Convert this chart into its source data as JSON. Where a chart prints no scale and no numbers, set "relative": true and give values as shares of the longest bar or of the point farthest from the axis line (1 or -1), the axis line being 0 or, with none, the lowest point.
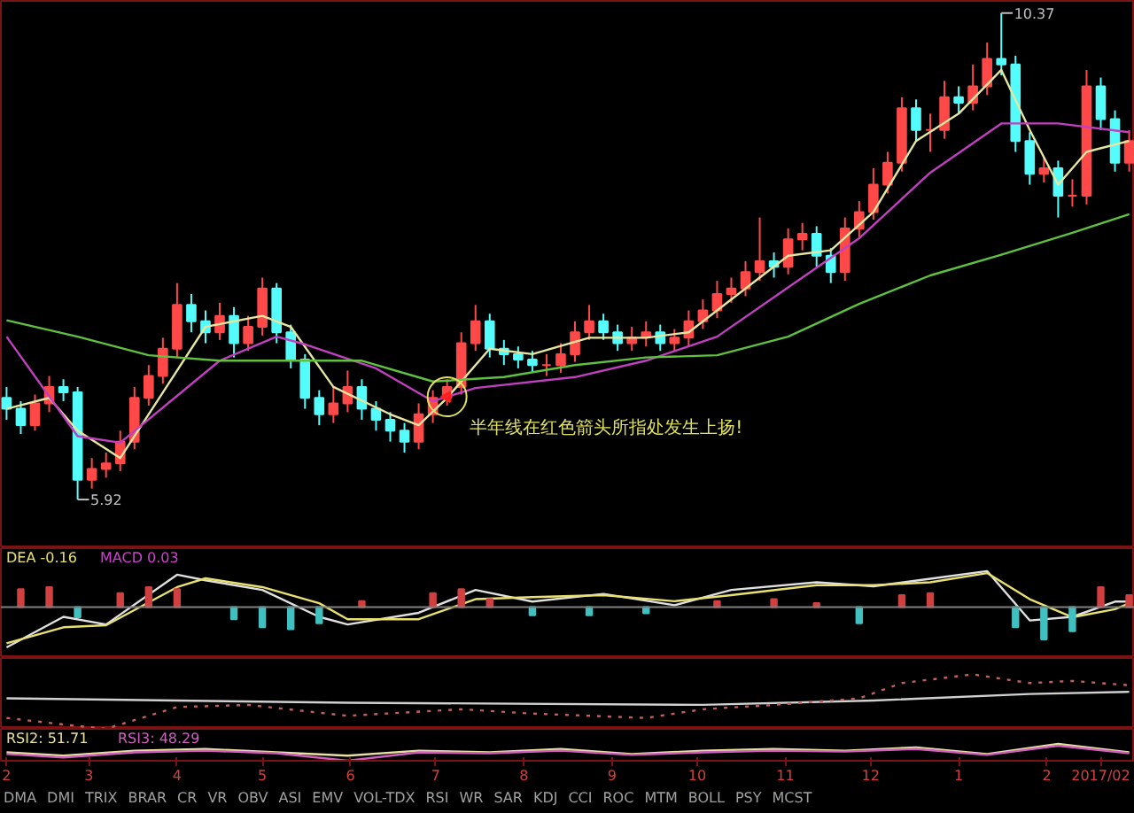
{
  "chart_data": [
    {
      "type": "candlestick",
      "xlim": [
        "2016-01-30",
        "2017-03-04"
      ],
      "tick_labels": false,
      "x": [
        "2016-02-01",
        "2016-02-06",
        "2016-02-11",
        "2016-02-16",
        "2016-02-21",
        "2016-02-26",
        "2016-03-02",
        "2016-03-07",
        "2016-03-12",
        "2016-03-17",
        "2016-03-22",
        "2016-03-27",
        "2016-04-01",
        "2016-04-06",
        "2016-04-11",
        "2016-04-16",
        "2016-04-21",
        "2016-04-26",
        "2016-05-01",
        "2016-05-06",
        "2016-05-11",
        "2016-05-16",
        "2016-05-21",
        "2016-05-26",
        "2016-05-31",
        "2016-06-05",
        "2016-06-10",
        "2016-06-15",
        "2016-06-20",
        "2016-06-25",
        "2016-06-30",
        "2016-07-05",
        "2016-07-10",
        "2016-07-15",
        "2016-07-20",
        "2016-07-25",
        "2016-07-30",
        "2016-08-04",
        "2016-08-09",
        "2016-08-14",
        "2016-08-19",
        "2016-08-24",
        "2016-08-29",
        "2016-09-03",
        "2016-09-08",
        "2016-09-13",
        "2016-09-18",
        "2016-09-23",
        "2016-09-28",
        "2016-10-03",
        "2016-10-08",
        "2016-10-13",
        "2016-10-18",
        "2016-10-23",
        "2016-10-28",
        "2016-11-02",
        "2016-11-07",
        "2016-11-12",
        "2016-11-17",
        "2016-11-22",
        "2016-11-27",
        "2016-12-02",
        "2016-12-07",
        "2016-12-12",
        "2016-12-17",
        "2016-12-22",
        "2016-12-27",
        "2017-01-01",
        "2017-01-06",
        "2017-01-11",
        "2017-01-16",
        "2017-01-21",
        "2017-01-26",
        "2017-01-31",
        "2017-02-05",
        "2017-02-10",
        "2017-02-15",
        "2017-02-20",
        "2017-02-25",
        "2017-03-02"
      ],
      "ohlc": [
        [
          6.85,
          6.95,
          6.65,
          6.75
        ],
        [
          6.75,
          6.82,
          6.52,
          6.6
        ],
        [
          6.6,
          6.88,
          6.55,
          6.8
        ],
        [
          6.8,
          7.05,
          6.72,
          6.95
        ],
        [
          6.95,
          7.02,
          6.82,
          6.9
        ],
        [
          6.9,
          6.95,
          5.92,
          6.1
        ],
        [
          6.1,
          6.3,
          6.02,
          6.2
        ],
        [
          6.2,
          6.35,
          6.12,
          6.25
        ],
        [
          6.25,
          6.55,
          6.18,
          6.45
        ],
        [
          6.45,
          6.95,
          6.38,
          6.85
        ],
        [
          6.85,
          7.15,
          6.78,
          7.05
        ],
        [
          7.05,
          7.4,
          6.98,
          7.3
        ],
        [
          7.3,
          7.9,
          7.22,
          7.7
        ],
        [
          7.7,
          7.8,
          7.45,
          7.55
        ],
        [
          7.55,
          7.65,
          7.35,
          7.45
        ],
        [
          7.45,
          7.72,
          7.38,
          7.6
        ],
        [
          7.6,
          7.68,
          7.22,
          7.35
        ],
        [
          7.35,
          7.6,
          7.28,
          7.5
        ],
        [
          7.5,
          7.95,
          7.42,
          7.85
        ],
        [
          7.85,
          7.9,
          7.35,
          7.45
        ],
        [
          7.45,
          7.52,
          7.12,
          7.2
        ],
        [
          7.2,
          7.25,
          6.75,
          6.85
        ],
        [
          6.85,
          6.92,
          6.6,
          6.7
        ],
        [
          6.7,
          6.95,
          6.62,
          6.8
        ],
        [
          6.8,
          7.1,
          6.72,
          6.95
        ],
        [
          6.95,
          7.02,
          6.65,
          6.75
        ],
        [
          6.75,
          6.82,
          6.55,
          6.65
        ],
        [
          6.65,
          6.72,
          6.45,
          6.55
        ],
        [
          6.55,
          6.62,
          6.35,
          6.45
        ],
        [
          6.45,
          6.8,
          6.38,
          6.7
        ],
        [
          6.7,
          6.92,
          6.62,
          6.85
        ],
        [
          6.85,
          7.02,
          6.78,
          6.95
        ],
        [
          6.95,
          7.45,
          6.88,
          7.35
        ],
        [
          7.35,
          7.7,
          7.28,
          7.55
        ],
        [
          7.55,
          7.62,
          7.22,
          7.3
        ],
        [
          7.3,
          7.38,
          7.15,
          7.25
        ],
        [
          7.25,
          7.32,
          7.12,
          7.2
        ],
        [
          7.2,
          7.28,
          7.08,
          7.15
        ],
        [
          7.15,
          7.25,
          7.05,
          7.15
        ],
        [
          7.15,
          7.35,
          7.08,
          7.25
        ],
        [
          7.25,
          7.55,
          7.18,
          7.45
        ],
        [
          7.45,
          7.7,
          7.38,
          7.55
        ],
        [
          7.55,
          7.62,
          7.38,
          7.45
        ],
        [
          7.45,
          7.52,
          7.28,
          7.35
        ],
        [
          7.35,
          7.5,
          7.28,
          7.4
        ],
        [
          7.4,
          7.55,
          7.32,
          7.45
        ],
        [
          7.45,
          7.52,
          7.28,
          7.35
        ],
        [
          7.35,
          7.48,
          7.28,
          7.4
        ],
        [
          7.4,
          7.65,
          7.32,
          7.55
        ],
        [
          7.55,
          7.75,
          7.48,
          7.65
        ],
        [
          7.65,
          7.92,
          7.58,
          7.8
        ],
        [
          7.8,
          7.95,
          7.72,
          7.85
        ],
        [
          7.85,
          8.1,
          7.78,
          8.0
        ],
        [
          8.0,
          8.5,
          7.92,
          8.1
        ],
        [
          8.1,
          8.18,
          7.95,
          8.05
        ],
        [
          8.05,
          8.4,
          7.98,
          8.3
        ],
        [
          8.3,
          8.45,
          8.2,
          8.35
        ],
        [
          8.35,
          8.42,
          8.05,
          8.15
        ],
        [
          8.15,
          8.22,
          7.9,
          8.0
        ],
        [
          8.0,
          8.5,
          7.92,
          8.4
        ],
        [
          8.4,
          8.65,
          8.32,
          8.55
        ],
        [
          8.55,
          8.95,
          8.48,
          8.8
        ],
        [
          8.8,
          9.1,
          8.72,
          9.0
        ],
        [
          9.0,
          9.6,
          8.92,
          9.5
        ],
        [
          9.5,
          9.58,
          9.2,
          9.3
        ],
        [
          9.3,
          9.45,
          9.1,
          9.3
        ],
        [
          9.3,
          9.75,
          9.22,
          9.6
        ],
        [
          9.6,
          9.7,
          9.45,
          9.55
        ],
        [
          9.55,
          9.9,
          9.48,
          9.7
        ],
        [
          9.7,
          10.1,
          9.62,
          9.95
        ],
        [
          9.95,
          10.37,
          9.8,
          9.9
        ],
        [
          9.9,
          9.98,
          9.1,
          9.2
        ],
        [
          9.2,
          9.28,
          8.8,
          8.9
        ],
        [
          8.9,
          9.05,
          8.82,
          8.95
        ],
        [
          8.95,
          9.02,
          8.5,
          8.7
        ],
        [
          8.7,
          8.85,
          8.6,
          8.7
        ],
        [
          8.7,
          9.85,
          8.62,
          9.7
        ],
        [
          9.7,
          9.78,
          9.3,
          9.4
        ],
        [
          9.4,
          9.48,
          8.92,
          9.0
        ],
        [
          9.0,
          9.3,
          8.92,
          9.2
        ]
      ],
      "series": [
        {
          "type": "line",
          "color": "#e6e6a0",
          "x": [
            "2016-02-01",
            "2016-02-16",
            "2016-02-26",
            "2016-03-12",
            "2016-03-27",
            "2016-04-11",
            "2016-05-01",
            "2016-05-11",
            "2016-05-26",
            "2016-06-15",
            "2016-06-25",
            "2016-07-05",
            "2016-07-20",
            "2016-08-04",
            "2016-08-24",
            "2016-09-13",
            "2016-09-28",
            "2016-10-18",
            "2016-11-02",
            "2016-11-17",
            "2016-12-02",
            "2016-12-17",
            "2017-01-01",
            "2017-01-16",
            "2017-01-26",
            "2017-02-05",
            "2017-02-15",
            "2017-03-02"
          ],
          "values": [
            6.75,
            6.85,
            6.55,
            6.3,
            6.9,
            7.5,
            7.6,
            7.5,
            6.95,
            6.7,
            6.6,
            6.85,
            7.3,
            7.25,
            7.4,
            7.4,
            7.45,
            7.85,
            8.15,
            8.2,
            8.55,
            9.2,
            9.45,
            9.85,
            9.3,
            8.8,
            9.1,
            9.2
          ]
        },
        {
          "type": "line",
          "color": "#c040c0",
          "x": [
            "2016-02-01",
            "2016-02-26",
            "2016-03-12",
            "2016-04-16",
            "2016-05-06",
            "2016-05-16",
            "2016-06-10",
            "2016-06-30",
            "2016-07-15",
            "2016-08-19",
            "2016-09-13",
            "2016-10-08",
            "2016-11-02",
            "2016-11-27",
            "2016-12-22",
            "2017-01-16",
            "2017-02-05",
            "2017-03-02"
          ],
          "values": [
            7.41,
            6.5,
            6.44,
            7.19,
            7.41,
            7.34,
            7.12,
            6.82,
            6.94,
            7.04,
            7.19,
            7.41,
            7.86,
            8.31,
            8.91,
            9.36,
            9.36,
            9.28
          ]
        },
        {
          "type": "line",
          "color": "#60c040",
          "x": [
            "2016-02-01",
            "2016-02-26",
            "2016-03-22",
            "2016-04-16",
            "2016-05-11",
            "2016-06-05",
            "2016-06-30",
            "2016-07-25",
            "2016-08-19",
            "2016-09-13",
            "2016-10-08",
            "2016-11-02",
            "2016-11-27",
            "2016-12-22",
            "2017-01-16",
            "2017-02-10",
            "2017-03-02"
          ],
          "values": [
            7.56,
            7.41,
            7.24,
            7.19,
            7.19,
            7.19,
            7.0,
            7.04,
            7.15,
            7.22,
            7.24,
            7.41,
            7.71,
            7.97,
            8.16,
            8.36,
            8.53
          ]
        }
      ],
      "annotations": [
        {
          "text": "10.37",
          "x": "2017-01-16",
          "y": 10.37
        },
        {
          "text": "5.92",
          "x": "2016-02-26",
          "y": 5.92
        },
        {
          "text": "半年线在红色箭头所指处发生上扬!",
          "x": "2016-07-05",
          "y": 6.86
        }
      ]
    },
    {
      "type": "line",
      "relative": true,
      "xlim": [
        "2016-01-30",
        "2017-03-04"
      ],
      "tick_labels": false,
      "legend": "top left",
      "series": [
        {
          "type": "line",
          "color": "#e0e0e0",
          "x": [
            "2016-02-01",
            "2016-02-21",
            "2016-03-07",
            "2016-04-01",
            "2016-04-11",
            "2016-05-01",
            "2016-05-21",
            "2016-05-31",
            "2016-06-25",
            "2016-07-15",
            "2016-08-04",
            "2016-08-29",
            "2016-09-23",
            "2016-10-13",
            "2016-11-12",
            "2016-12-02",
            "2016-12-22",
            "2017-01-11",
            "2017-01-26",
            "2017-02-10",
            "2017-02-25",
            "2017-03-02"
          ],
          "values": [
            -1.0,
            -0.24,
            -0.43,
            0.81,
            0.67,
            0.43,
            -0.24,
            -0.43,
            -0.14,
            0.43,
            0.14,
            0.33,
            0.05,
            0.43,
            0.62,
            0.52,
            0.71,
            0.9,
            -0.33,
            -0.24,
            0.14,
            0.14
          ]
        },
        {
          "type": "line",
          "name": "DEA -0.16",
          "color": "#e8e070",
          "x": [
            "2016-02-01",
            "2016-02-21",
            "2016-03-07",
            "2016-04-01",
            "2016-04-11",
            "2016-05-01",
            "2016-05-21",
            "2016-05-31",
            "2016-06-25",
            "2016-07-15",
            "2016-08-04",
            "2016-08-29",
            "2016-09-23",
            "2016-10-13",
            "2016-11-12",
            "2016-12-02",
            "2016-12-22",
            "2017-01-11",
            "2017-01-26",
            "2017-02-10",
            "2017-02-25",
            "2017-03-02"
          ],
          "values": [
            -0.9,
            -0.5,
            -0.45,
            0.5,
            0.72,
            0.5,
            0.1,
            -0.3,
            -0.3,
            0.2,
            0.25,
            0.3,
            0.15,
            0.3,
            0.55,
            0.55,
            0.62,
            0.85,
            0.2,
            -0.25,
            -0.05,
            0.1
          ]
        },
        {
          "type": "bar",
          "name": "MACD 0.03",
          "color": "#d040d0",
          "x": [
            "2016-02-06",
            "2016-02-16",
            "2016-02-26",
            "2016-03-12",
            "2016-03-22",
            "2016-04-01",
            "2016-04-21",
            "2016-05-01",
            "2016-05-11",
            "2016-05-21",
            "2016-06-05",
            "2016-06-30",
            "2016-07-10",
            "2016-07-20",
            "2016-08-04",
            "2016-08-24",
            "2016-09-13",
            "2016-10-08",
            "2016-10-28",
            "2016-11-12",
            "2016-11-27",
            "2016-12-12",
            "2016-12-22",
            "2017-01-21",
            "2017-01-31",
            "2017-02-10",
            "2017-02-20",
            "2017-03-02"
          ],
          "values": [
            0.45,
            0.5,
            -0.25,
            0.35,
            0.5,
            0.45,
            -0.3,
            -0.5,
            -0.55,
            -0.4,
            0.15,
            0.35,
            0.45,
            0.2,
            -0.2,
            -0.2,
            -0.15,
            0.15,
            0.2,
            0.1,
            -0.4,
            0.3,
            0.35,
            -0.5,
            -0.8,
            -0.6,
            0.5,
            0.3
          ],
          "colors": [
            "#d04040",
            "#d04040",
            "#40c0c0",
            "#d04040",
            "#d04040",
            "#d04040",
            "#40c0c0",
            "#40c0c0",
            "#40c0c0",
            "#40c0c0",
            "#d04040",
            "#d04040",
            "#d04040",
            "#d04040",
            "#40c0c0",
            "#40c0c0",
            "#40c0c0",
            "#d04040",
            "#d04040",
            "#d04040",
            "#40c0c0",
            "#d04040",
            "#d04040",
            "#40c0c0",
            "#40c0c0",
            "#40c0c0",
            "#d04040",
            "#d04040"
          ]
        }
      ]
    },
    {
      "type": "line",
      "relative": true,
      "xlim": [
        "2016-01-30",
        "2017-03-04"
      ],
      "tick_labels": false,
      "series": [
        {
          "type": "line",
          "color": "#d0d0d0",
          "x": [
            "2016-02-01",
            "2016-05-31",
            "2016-10-03",
            "2016-12-02",
            "2017-01-26",
            "2017-03-02"
          ],
          "values": [
            0.56,
            0.48,
            0.44,
            0.52,
            0.64,
            0.68
          ]
        },
        {
          "type": "line",
          "color": "#c06060",
          "line_style": "dotted",
          "x": [
            "2016-02-01",
            "2016-02-21",
            "2016-03-07",
            "2016-04-01",
            "2016-04-26",
            "2016-05-31",
            "2016-07-10",
            "2016-08-04",
            "2016-09-13",
            "2016-10-03",
            "2016-10-28",
            "2016-11-27",
            "2016-12-12",
            "2017-01-06",
            "2017-01-26",
            "2017-02-10",
            "2017-03-02"
          ],
          "values": [
            0.2,
            0.08,
            0.0,
            0.4,
            0.44,
            0.24,
            0.36,
            0.28,
            0.2,
            0.36,
            0.44,
            0.56,
            0.84,
            1.0,
            0.84,
            0.88,
            0.8
          ]
        }
      ]
    },
    {
      "type": "line",
      "relative": true,
      "xlim": [
        "2016-01-30",
        "2017-03-04"
      ],
      "tick_labels": "x",
      "legend": "top left",
      "xticks": [
        {
          "value": "2016-02-01",
          "label": "2"
        },
        {
          "value": "2016-03-01",
          "label": "3"
        },
        {
          "value": "2016-04-01",
          "label": "4"
        },
        {
          "value": "2016-05-01",
          "label": "5"
        },
        {
          "value": "2016-06-01",
          "label": "6"
        },
        {
          "value": "2016-07-01",
          "label": "7"
        },
        {
          "value": "2016-08-01",
          "label": "8"
        },
        {
          "value": "2016-09-01",
          "label": "9"
        },
        {
          "value": "2016-10-01",
          "label": "10"
        },
        {
          "value": "2016-11-01",
          "label": "11"
        },
        {
          "value": "2016-12-01",
          "label": "12"
        },
        {
          "value": "2017-01-01",
          "label": "1"
        },
        {
          "value": "2017-02-01",
          "label": "2"
        },
        {
          "value": "2017-02-20",
          "label": "2017/02"
        }
      ],
      "series": [
        {
          "type": "line",
          "name": "RSI2: 51.71",
          "color": "#e8e0a0",
          "x": [
            "2016-02-01",
            "2016-02-21",
            "2016-03-17",
            "2016-04-11",
            "2016-05-06",
            "2016-05-31",
            "2016-06-25",
            "2016-07-20",
            "2016-08-14",
            "2016-09-08",
            "2016-10-03",
            "2016-10-28",
            "2016-11-22",
            "2016-12-17",
            "2017-01-11",
            "2017-02-05",
            "2017-03-02"
          ],
          "values": [
            0.5,
            0.3,
            0.6,
            0.7,
            0.5,
            0.3,
            0.6,
            0.5,
            0.7,
            0.4,
            0.6,
            0.7,
            0.6,
            0.8,
            0.4,
            1.0,
            0.5
          ]
        },
        {
          "type": "line",
          "name": "RSI3: 48.29",
          "color": "#d060c0",
          "x": [
            "2016-02-01",
            "2016-02-21",
            "2016-03-17",
            "2016-04-11",
            "2016-05-06",
            "2016-05-31",
            "2016-06-25",
            "2016-07-20",
            "2016-08-14",
            "2016-09-08",
            "2016-10-03",
            "2016-10-28",
            "2016-11-22",
            "2016-12-17",
            "2017-01-11",
            "2017-02-05",
            "2017-03-02"
          ],
          "values": [
            0.4,
            0.2,
            0.5,
            0.6,
            0.45,
            0.0,
            0.5,
            0.45,
            0.6,
            0.35,
            0.5,
            0.6,
            0.55,
            0.7,
            0.35,
            0.9,
            0.45
          ]
        }
      ],
      "annotations": [
        "DMA",
        "DMI",
        "TRIX",
        "BRAR",
        "CR",
        "VR",
        "OBV",
        "ASI",
        "EMV",
        "VOL-TDX",
        "RSI",
        "WR",
        "SAR",
        "KDJ",
        "CCI",
        "ROC",
        "MTM",
        "BOLL",
        "PSY",
        "MCST"
      ]
    }
  ]
}
